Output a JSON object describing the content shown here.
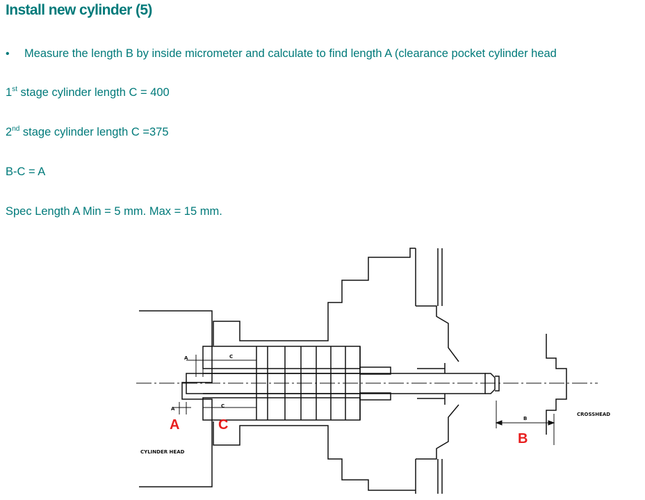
{
  "title": "Install new cylinder (5)",
  "bullet": {
    "symbol": "•",
    "text": "Measure the length B by inside micrometer and calculate to find length A (clearance pocket cylinder head"
  },
  "stage1": {
    "num": "1",
    "sup": "st",
    "text": " stage cylinder length C = 400"
  },
  "stage2": {
    "num": "2",
    "sup": "nd",
    "text": " stage cylinder length C =375"
  },
  "formula": "B-C = A",
  "spec": "Spec Length A Min = 5 mm. Max = 15 mm.",
  "colors": {
    "text_teal": "#007a7a",
    "label_red": "#e81e1e"
  },
  "diagram": {
    "labels": {
      "A": "A",
      "C": "C",
      "B": "B",
      "a_small": "A",
      "c_small": "C",
      "b_small": "B",
      "cylinder_head": "CYLINDER HEAD",
      "crosshead": "CROSSHEAD"
    }
  }
}
